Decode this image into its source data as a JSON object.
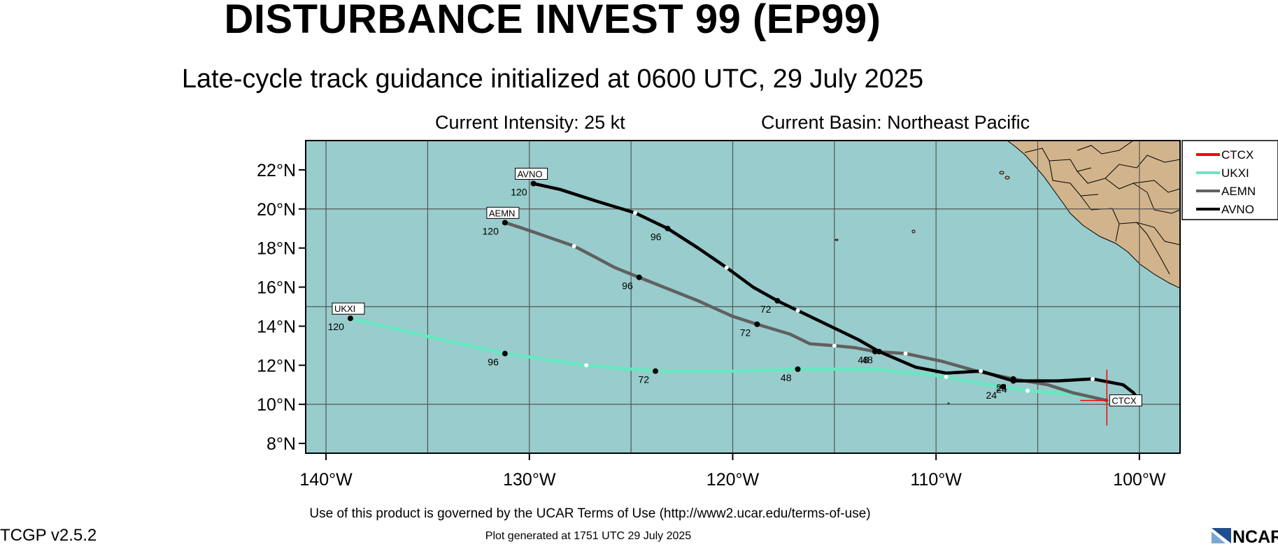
{
  "header": {
    "title": "DISTURBANCE INVEST 99 (EP99)",
    "subtitle": "Late-cycle track guidance initialized at 0600 UTC, 29 July 2025",
    "intensity": "Current Intensity: 25 kt",
    "basin": "Current Basin: Northeast Pacific"
  },
  "map": {
    "lon_range": [
      -141,
      -98
    ],
    "lat_range": [
      7.5,
      23.5
    ],
    "lon_ticks": [
      {
        "value": -140,
        "label": "140°W"
      },
      {
        "value": -130,
        "label": "130°W"
      },
      {
        "value": -120,
        "label": "120°W"
      },
      {
        "value": -110,
        "label": "110°W"
      },
      {
        "value": -100,
        "label": "100°W"
      }
    ],
    "lat_ticks": [
      {
        "value": 8,
        "label": "8°N"
      },
      {
        "value": 10,
        "label": "10°N"
      },
      {
        "value": 12,
        "label": "12°N"
      },
      {
        "value": 14,
        "label": "14°N"
      },
      {
        "value": 16,
        "label": "16°N"
      },
      {
        "value": 18,
        "label": "18°N"
      },
      {
        "value": 20,
        "label": "20°N"
      },
      {
        "value": 22,
        "label": "22°N"
      }
    ],
    "ocean_color": "#99cccc",
    "land_color": "#d2b48c",
    "grid_color": "#555555"
  },
  "chart_data": {
    "type": "line",
    "x_unit": "longitude (°E, negative = °W)",
    "y_unit": "latitude (°N)",
    "series": [
      {
        "name": "CTCX",
        "color": "#ff0000",
        "points": [
          [
            -101.6,
            10.2
          ],
          [
            -101.6,
            10.2
          ]
        ],
        "hour_labels": [],
        "end_tag": "CTCX"
      },
      {
        "name": "UKXI",
        "color": "#66e8c0",
        "points": [
          [
            -101.6,
            10.2
          ],
          [
            -102.3,
            10.3
          ],
          [
            -103.1,
            10.5
          ],
          [
            -105.5,
            10.7
          ],
          [
            -106.7,
            10.9
          ],
          [
            -108,
            11.1
          ],
          [
            -109.5,
            11.4
          ],
          [
            -111,
            11.6
          ],
          [
            -113,
            11.8
          ],
          [
            -116.8,
            11.8
          ],
          [
            -120,
            11.7
          ],
          [
            -123.8,
            11.7
          ],
          [
            -127.2,
            12.0
          ],
          [
            -131.2,
            12.6
          ],
          [
            -135.1,
            13.5
          ],
          [
            -138.8,
            14.4
          ]
        ],
        "hour_labels": [
          {
            "lon": -106.7,
            "lat": 10.9,
            "text": "24"
          },
          {
            "lon": -116.8,
            "lat": 11.8,
            "text": "48"
          },
          {
            "lon": -123.8,
            "lat": 11.7,
            "text": "72"
          },
          {
            "lon": -131.2,
            "lat": 12.6,
            "text": "96"
          },
          {
            "lon": -138.8,
            "lat": 14.4,
            "text": "120"
          }
        ],
        "end_tag": "UKXI"
      },
      {
        "name": "AEMN",
        "color": "#606060",
        "points": [
          [
            -101.6,
            10.2
          ],
          [
            -103.3,
            10.6
          ],
          [
            -104.5,
            11.0
          ],
          [
            -106.2,
            11.3
          ],
          [
            -108,
            11.7
          ],
          [
            -109.7,
            12.2
          ],
          [
            -111.5,
            12.6
          ],
          [
            -113,
            12.7
          ],
          [
            -114,
            12.9
          ],
          [
            -115,
            13.0
          ],
          [
            -116.2,
            13.1
          ],
          [
            -117.2,
            13.6
          ],
          [
            -118.8,
            14.1
          ],
          [
            -120,
            14.5
          ],
          [
            -121.7,
            15.3
          ],
          [
            -124.6,
            16.5
          ],
          [
            -125.8,
            17.0
          ],
          [
            -126.7,
            17.5
          ],
          [
            -127.8,
            18.1
          ],
          [
            -130.3,
            19.0
          ],
          [
            -131.2,
            19.3
          ]
        ],
        "hour_labels": [
          {
            "lon": -106.2,
            "lat": 11.3,
            "text": "24"
          },
          {
            "lon": -113,
            "lat": 12.7,
            "text": "48"
          },
          {
            "lon": -118.8,
            "lat": 14.1,
            "text": "72"
          },
          {
            "lon": -124.6,
            "lat": 16.5,
            "text": "96"
          },
          {
            "lon": -131.2,
            "lat": 19.3,
            "text": "120"
          }
        ],
        "end_tag": "AEMN"
      },
      {
        "name": "AVNO",
        "color": "#000000",
        "points": [
          [
            -100,
            10.2
          ],
          [
            -100.3,
            10.6
          ],
          [
            -100.8,
            11.0
          ],
          [
            -102.3,
            11.3
          ],
          [
            -104,
            11.2
          ],
          [
            -106.2,
            11.2
          ],
          [
            -107.8,
            11.7
          ],
          [
            -109.5,
            11.6
          ],
          [
            -111,
            11.9
          ],
          [
            -112.8,
            12.7
          ],
          [
            -113.8,
            13.3
          ],
          [
            -115.2,
            14.0
          ],
          [
            -116.8,
            14.8
          ],
          [
            -117.8,
            15.3
          ],
          [
            -119,
            16.0
          ],
          [
            -120.3,
            17.0
          ],
          [
            -121.7,
            18.0
          ],
          [
            -123.2,
            19.0
          ],
          [
            -124.8,
            19.8
          ],
          [
            -126.7,
            20.4
          ],
          [
            -128.5,
            21.0
          ],
          [
            -129.8,
            21.3
          ]
        ],
        "hour_labels": [
          {
            "lon": -106.2,
            "lat": 11.2,
            "text": "24"
          },
          {
            "lon": -112.8,
            "lat": 12.7,
            "text": "48"
          },
          {
            "lon": -117.8,
            "lat": 15.3,
            "text": "72"
          },
          {
            "lon": -123.2,
            "lat": 19.0,
            "text": "96"
          },
          {
            "lon": -129.8,
            "lat": 21.3,
            "text": "120"
          }
        ],
        "end_tag": "AVNO"
      }
    ]
  },
  "legend": {
    "items": [
      {
        "label": "CTCX",
        "color": "#ff0000"
      },
      {
        "label": "UKXI",
        "color": "#66e8c0"
      },
      {
        "label": "AEMN",
        "color": "#606060"
      },
      {
        "label": "AVNO",
        "color": "#000000"
      }
    ]
  },
  "footer": {
    "terms": "Use of this product is governed by the UCAR Terms of Use (http://www2.ucar.edu/terms-of-use)",
    "version": "TCGP v2.5.2",
    "generated": "Plot generated at 1751 UTC   29 July 2025",
    "logo_text": "NCAR"
  }
}
